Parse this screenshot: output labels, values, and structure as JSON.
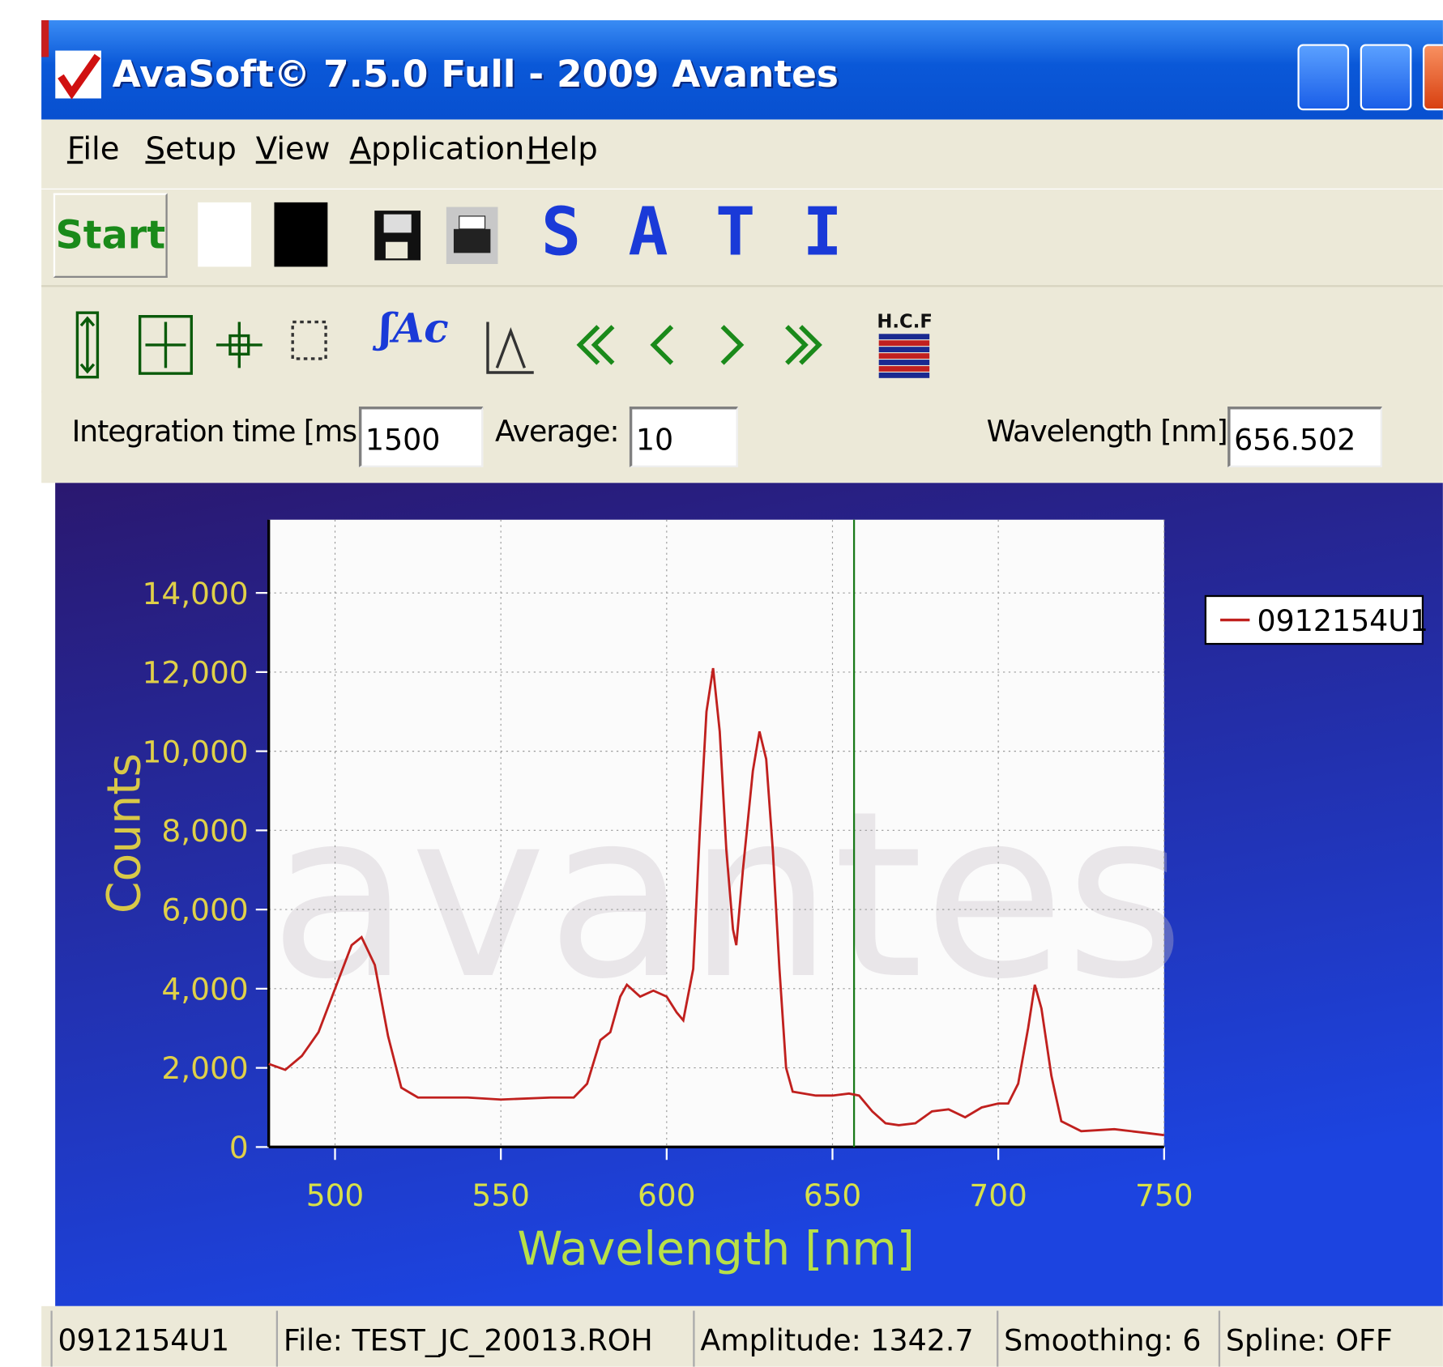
{
  "window": {
    "title": "AvaSoft© 7.5.0 Full - 2009 Avantes"
  },
  "menu": [
    "File",
    "Setup",
    "View",
    "Application",
    "Help"
  ],
  "toolbar": {
    "start": "Start",
    "brand": "S A T I",
    "integral": "ʃAc",
    "hcf": "H.C.F"
  },
  "params": {
    "integration_label": "Integration time [ms]:",
    "integration": "1500",
    "average_label": "Average:",
    "average": "10",
    "wavelength_label": "Wavelength [nm]:",
    "wavelength": "656.502"
  },
  "chart_data": {
    "type": "line",
    "watermark": "avantes",
    "xlabel": "Wavelength [nm]",
    "ylabel": "Counts",
    "xlim": [
      480,
      750
    ],
    "xticks": [
      500,
      550,
      600,
      650,
      700,
      750
    ],
    "ylim": [
      0,
      15850
    ],
    "yticks": [
      0,
      {
        "value": 2000,
        "label": "2,000"
      },
      {
        "value": 4000,
        "label": "4,000"
      },
      {
        "value": 6000,
        "label": "6,000"
      },
      {
        "value": 8000,
        "label": "8,000"
      },
      {
        "value": 10000,
        "label": "10,000"
      },
      {
        "value": 12000,
        "label": "12,000"
      },
      {
        "value": 14000,
        "label": "14,000"
      }
    ],
    "grid": true,
    "legend": "upper right",
    "cursor_color": "#1a7a1a",
    "x": [
      480,
      485,
      490,
      495,
      500,
      505,
      508,
      512,
      516,
      520,
      525,
      540,
      550,
      565,
      572,
      576,
      580,
      583,
      586,
      588,
      592,
      596,
      600,
      603,
      605,
      608,
      610,
      612,
      614,
      616,
      618,
      620,
      621,
      623,
      626,
      628,
      630,
      632,
      634,
      636,
      638,
      645,
      650,
      655,
      658,
      662,
      666,
      670,
      675,
      680,
      685,
      690,
      695,
      700,
      703,
      706,
      709,
      711,
      713,
      716,
      719,
      725,
      735,
      745,
      750
    ],
    "series": [
      {
        "name": "0912154U1",
        "color": "#c0201e",
        "values": [
          2100,
          1950,
          2300,
          2900,
          4000,
          5100,
          5300,
          4600,
          2800,
          1500,
          1250,
          1250,
          1200,
          1250,
          1250,
          1600,
          2700,
          2900,
          3800,
          4100,
          3800,
          3950,
          3800,
          3400,
          3200,
          4500,
          8000,
          11000,
          12100,
          10500,
          7500,
          5500,
          5100,
          7000,
          9500,
          10500,
          9800,
          7500,
          4500,
          2000,
          1400,
          1300,
          1300,
          1350,
          1300,
          900,
          600,
          550,
          600,
          900,
          950,
          750,
          1000,
          1100,
          1100,
          1600,
          3000,
          4100,
          3500,
          1800,
          650,
          400,
          450,
          350,
          300
        ]
      }
    ]
  },
  "status": [
    "0912154U1",
    "File: TEST_JC_20013.ROH",
    "Amplitude: 1342.7",
    "Smoothing: 6",
    "Spline: OFF"
  ]
}
